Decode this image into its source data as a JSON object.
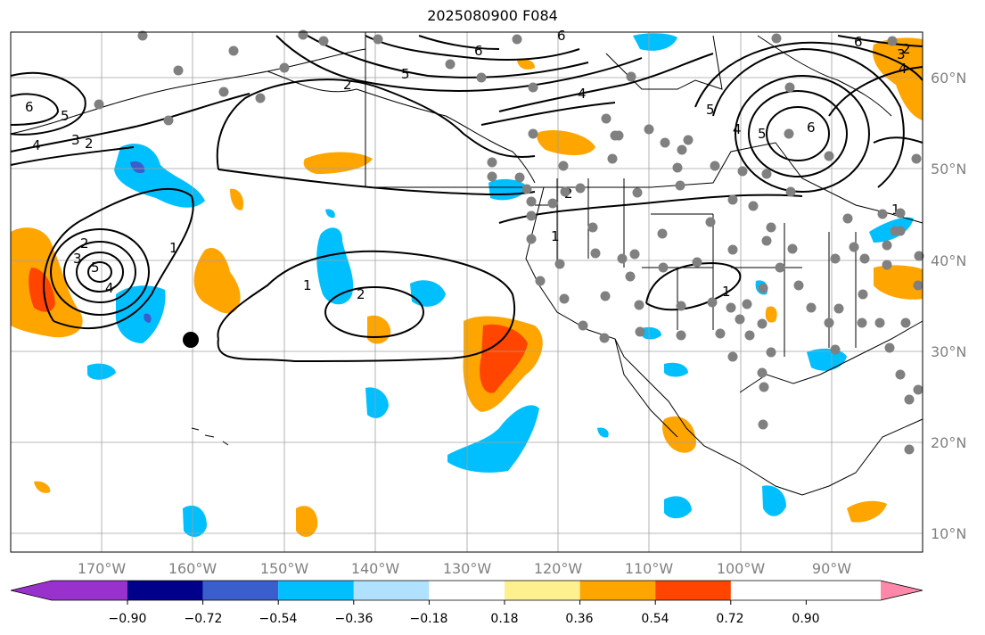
{
  "title": "2025080900 F084",
  "map": {
    "lat_labels": [
      "60°N",
      "50°N",
      "40°N",
      "30°N",
      "20°N",
      "10°N"
    ],
    "lon_labels": [
      "170°W",
      "160°W",
      "150°W",
      "140°W",
      "130°W",
      "120°W",
      "110°W",
      "100°W",
      "90°W"
    ],
    "contour_color": "#000000",
    "station_marker_color": "#808080",
    "contour_labels": [
      "6",
      "5",
      "4",
      "3",
      "2",
      "2",
      "1",
      "1",
      "1",
      "2",
      "2",
      "1",
      "4",
      "5",
      "6",
      "6",
      "5",
      "4",
      "6",
      "3",
      "4",
      "5",
      "6",
      "5",
      "4",
      "3",
      "2",
      "1",
      "2"
    ]
  },
  "colorbar": {
    "tick_labels": [
      "−0.90",
      "−0.72",
      "−0.54",
      "−0.36",
      "−0.18",
      "0.18",
      "0.36",
      "0.54",
      "0.72",
      "0.90"
    ],
    "colors": [
      "#9932cc",
      "#00008b",
      "#3a5fcd",
      "#00bfff",
      "#b0e2ff",
      "#ffffff",
      "#fff08f",
      "#ffa500",
      "#ff4500",
      "#b22222",
      "#ff88aa"
    ]
  }
}
